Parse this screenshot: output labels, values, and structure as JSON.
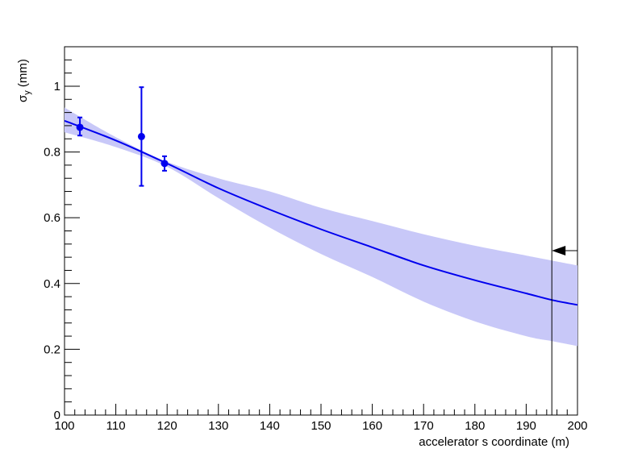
{
  "chart_data": {
    "type": "line",
    "title": "",
    "xlabel": "accelerator s coordinate (m)",
    "ylabel": {
      "symbol": "σ",
      "subscript": "y",
      "unit": "(mm)"
    },
    "xlim": [
      100,
      200
    ],
    "ylim": [
      0,
      1.12
    ],
    "x_ticks": [
      100,
      110,
      120,
      130,
      140,
      150,
      160,
      170,
      180,
      190,
      200
    ],
    "y_ticks": [
      0,
      0.2,
      0.4,
      0.6,
      0.8,
      1
    ],
    "y_tick_labels": [
      "0",
      "0.2",
      "0.4",
      "0.6",
      "0.8",
      "1"
    ],
    "grid": false,
    "measurements": {
      "name": "",
      "color": "#0000ee",
      "points": [
        {
          "x": 103,
          "y": 0.875,
          "yerr_low": 0.025,
          "yerr_high": 0.03
        },
        {
          "x": 115,
          "y": 0.847,
          "yerr_low": 0.15,
          "yerr_high": 0.15
        },
        {
          "x": 119.5,
          "y": 0.765,
          "yerr_low": 0.022,
          "yerr_high": 0.022
        }
      ]
    },
    "fit_curve": {
      "name": "",
      "color": "#0000ee",
      "x": [
        100,
        110,
        120,
        130,
        140,
        150,
        160,
        170,
        180,
        190,
        195,
        200
      ],
      "y": [
        0.895,
        0.835,
        0.765,
        0.69,
        0.625,
        0.565,
        0.51,
        0.455,
        0.41,
        0.37,
        0.35,
        0.335
      ]
    },
    "uncertainty_band": {
      "name": "",
      "color": "#c8c8f8",
      "x": [
        100,
        110,
        120,
        130,
        140,
        150,
        160,
        170,
        180,
        190,
        195,
        200
      ],
      "upper": [
        0.935,
        0.845,
        0.77,
        0.72,
        0.68,
        0.63,
        0.59,
        0.55,
        0.515,
        0.485,
        0.47,
        0.455
      ],
      "lower": [
        0.86,
        0.815,
        0.755,
        0.66,
        0.57,
        0.49,
        0.42,
        0.345,
        0.285,
        0.24,
        0.225,
        0.21
      ]
    },
    "vertical_marker": {
      "x": 195
    },
    "arrow_marker": {
      "y": 0.5,
      "x_from": 200,
      "x_to": 195,
      "direction": "left"
    }
  }
}
